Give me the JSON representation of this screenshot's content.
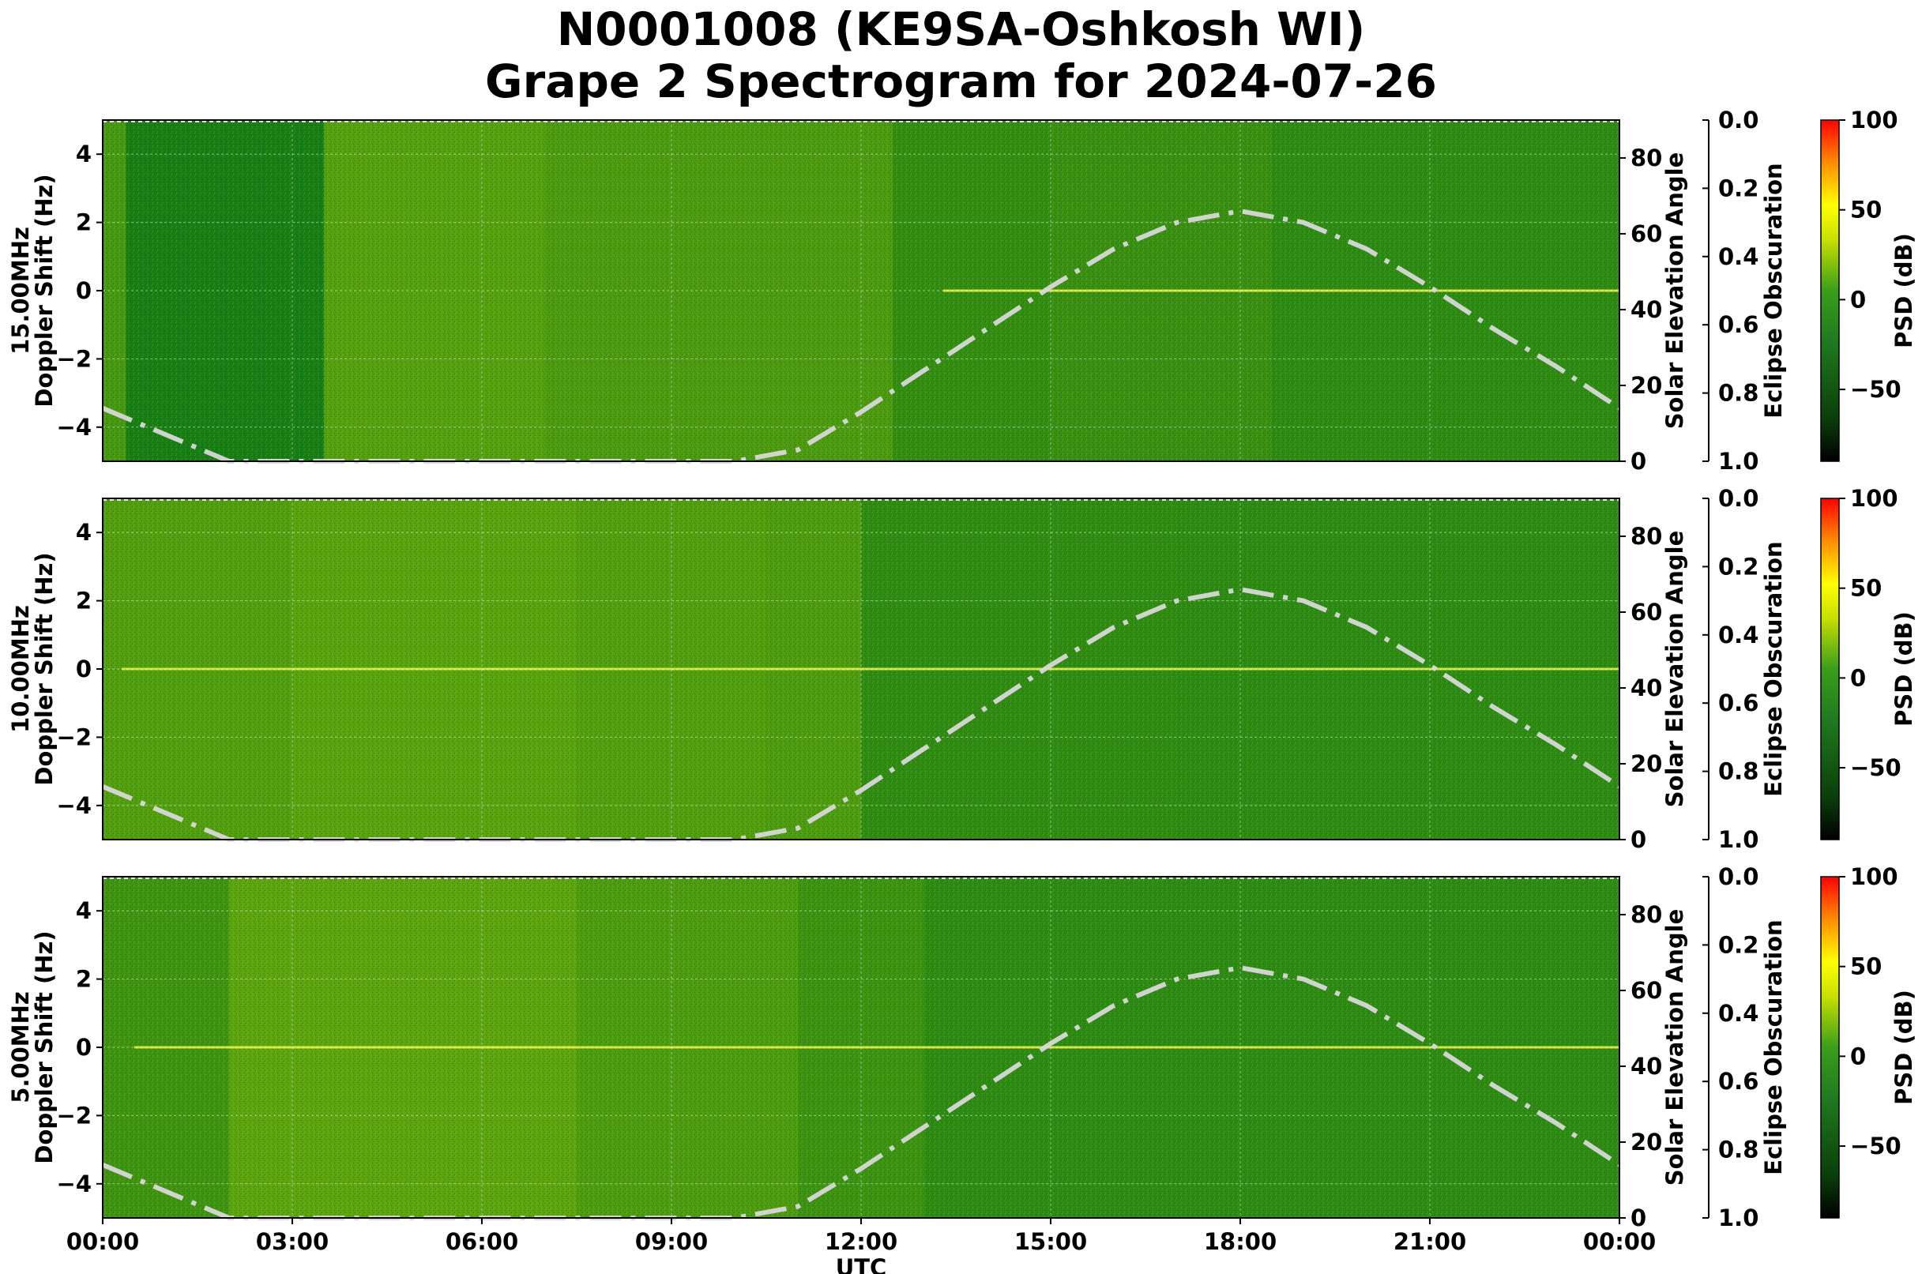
{
  "title_line1": "N0001008 (KE9SA-Oshkosh WI)",
  "title_line2": "Grape 2 Spectrogram for 2024-07-26",
  "chart_data": {
    "type": "heatmap",
    "x_label": "UTC",
    "x_ticks": [
      "00:00",
      "03:00",
      "06:00",
      "09:00",
      "12:00",
      "15:00",
      "18:00",
      "21:00",
      "00:00"
    ],
    "y_label": "Doppler Shift (Hz)",
    "y_ticks": [
      "4",
      "2",
      "0",
      "−2",
      "−4"
    ],
    "y_range": [
      -5,
      5
    ],
    "right_axis_label": "Solar Elevation Angle",
    "right_axis_ticks": [
      "80",
      "60",
      "40",
      "20",
      "0"
    ],
    "right_axis_range": [
      0,
      90
    ],
    "eclipse_label": "Eclipse Obscuration",
    "eclipse_ticks": [
      "0.0",
      "0.2",
      "0.4",
      "0.6",
      "0.8",
      "1.0"
    ],
    "colorbar_label": "PSD (dB)",
    "colorbar_ticks": [
      "100",
      "50",
      "0",
      "−50"
    ],
    "colorbar_range": [
      -90,
      100
    ],
    "colormap": [
      "#000000",
      "#0a3d0a",
      "#1f7a1f",
      "#3a9e1a",
      "#c8e000",
      "#ffff00",
      "#ff8800",
      "#ff0000"
    ],
    "solar_elevation_deg": {
      "utc_hours": [
        0,
        1,
        2,
        3,
        4,
        5,
        6,
        7,
        8,
        9,
        10,
        11,
        12,
        13,
        14,
        15,
        16,
        17,
        18,
        19,
        20,
        21,
        22,
        23,
        24
      ],
      "values": [
        14,
        7,
        0,
        0,
        0,
        0,
        0,
        0,
        0,
        0,
        0,
        3,
        13,
        24,
        35,
        46,
        56,
        63,
        66,
        63,
        56,
        46,
        35,
        25,
        14
      ]
    },
    "panels": [
      {
        "label": "15.00MHz",
        "bands": [
          [
            0.0,
            0.37,
            0.65
          ],
          [
            3.5,
            7.0,
            0.85
          ],
          [
            7.0,
            12.5,
            0.7
          ],
          [
            12.5,
            15.0,
            0.4
          ],
          [
            15.0,
            18.5,
            0.45
          ],
          [
            18.5,
            24.0,
            0.3
          ]
        ],
        "trace_from": 13.3,
        "trace_to": 24.0
      },
      {
        "label": "10.00MHz",
        "bands": [
          [
            0.0,
            3.0,
            0.8
          ],
          [
            3.0,
            7.5,
            0.9
          ],
          [
            7.5,
            10.5,
            0.8
          ],
          [
            10.5,
            12.0,
            0.75
          ],
          [
            12.0,
            17.0,
            0.35
          ],
          [
            17.0,
            24.0,
            0.3
          ]
        ],
        "trace_from": 0.3,
        "trace_to": 24.0
      },
      {
        "label": "5.00MHz",
        "bands": [
          [
            0.0,
            2.0,
            0.55
          ],
          [
            2.0,
            7.5,
            0.95
          ],
          [
            7.5,
            11.0,
            0.75
          ],
          [
            11.0,
            13.0,
            0.5
          ],
          [
            13.0,
            24.0,
            0.3
          ]
        ],
        "trace_from": 0.5,
        "trace_to": 24.0
      }
    ]
  }
}
